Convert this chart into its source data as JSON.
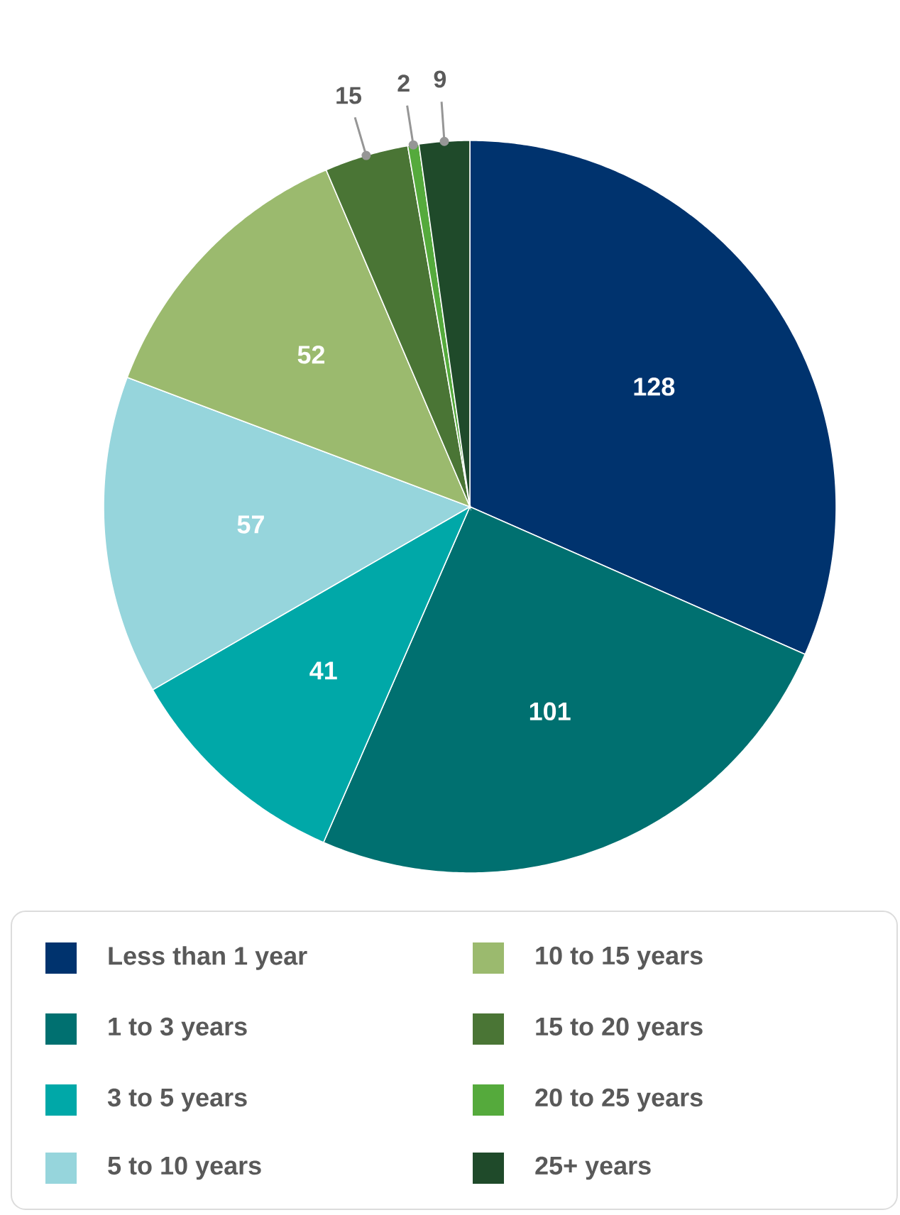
{
  "chart_data": {
    "type": "pie",
    "categories": [
      "Less than 1 year",
      "1 to 3 years",
      "3 to 5 years",
      "5 to 10 years",
      "10 to 15 years",
      "15 to 20 years",
      "20 to 25 years",
      "25+ years"
    ],
    "values": [
      128,
      101,
      41,
      57,
      52,
      15,
      2,
      9
    ],
    "colors": [
      "#00336e",
      "#007070",
      "#00a8a8",
      "#96d5dc",
      "#9bba6e",
      "#4a7535",
      "#55aa3c",
      "#1f4a2a"
    ],
    "data_labels": true,
    "legend": "bottom"
  }
}
